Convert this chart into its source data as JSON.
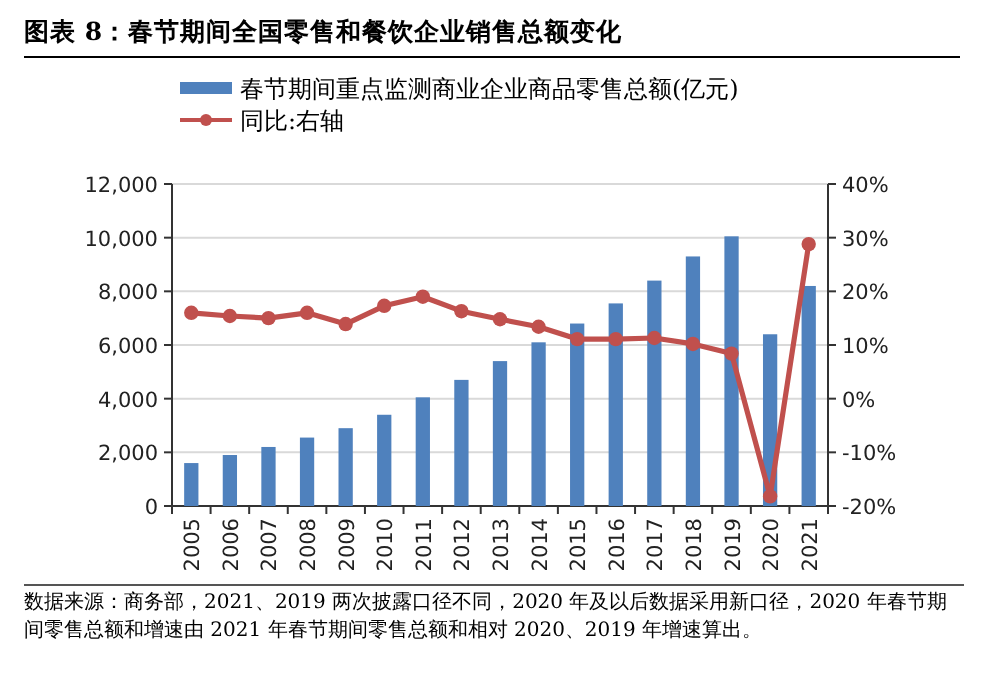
{
  "chart_data": {
    "type": "bar",
    "title": "图表 8：春节期间全国零售和餐饮企业销售总额变化",
    "categories": [
      "2005",
      "2006",
      "2007",
      "2008",
      "2009",
      "2010",
      "2011",
      "2012",
      "2013",
      "2014",
      "2015",
      "2016",
      "2017",
      "2018",
      "2019",
      "2020",
      "2021"
    ],
    "series": [
      {
        "name": "春节期间重点监测商业企业商品零售总额(亿元)",
        "color": "#4f81bd",
        "values": [
          1600,
          1900,
          2200,
          2550,
          2900,
          3400,
          4050,
          4700,
          5400,
          6100,
          6800,
          7550,
          8400,
          9300,
          10050,
          6400,
          8200
        ]
      },
      {
        "name": "同比:右轴",
        "type": "line",
        "axis": "y2",
        "color": "#c0504d",
        "values": [
          16.0,
          15.4,
          15.0,
          16.0,
          13.9,
          17.3,
          19.0,
          16.3,
          14.8,
          13.4,
          11.1,
          11.1,
          11.3,
          10.2,
          8.4,
          -18.2,
          28.8
        ]
      }
    ],
    "ylim": [
      0,
      12000
    ],
    "yticks": [
      0,
      {
        "value": 2000,
        "label": "2,000"
      },
      {
        "value": 4000,
        "label": "4,000"
      },
      {
        "value": 6000,
        "label": "6,000"
      },
      {
        "value": 8000,
        "label": "8,000"
      },
      {
        "value": 10000,
        "label": "10,000"
      },
      {
        "value": 12000,
        "label": "12,000"
      }
    ],
    "y2lim": [
      -20,
      40
    ],
    "y2ticks": [
      {
        "value": -20,
        "label": "-20%"
      },
      {
        "value": -10,
        "label": "-10%"
      },
      {
        "value": 0,
        "label": "0%"
      },
      {
        "value": 10,
        "label": "10%"
      },
      {
        "value": 20,
        "label": "20%"
      },
      {
        "value": 30,
        "label": "30%"
      },
      {
        "value": 40,
        "label": "40%"
      }
    ],
    "grid": "y",
    "legend": "top",
    "marker": "circle",
    "line_style": "solid",
    "annotations": [
      "数据来源：商务部，2021、2019 两次披露口径不同，2020 年及以后数据采用新口径，2020 年春节期间零售总额和增速由 2021 年春节期间零售总额和相对 2020、2019 年增速算出。"
    ]
  }
}
